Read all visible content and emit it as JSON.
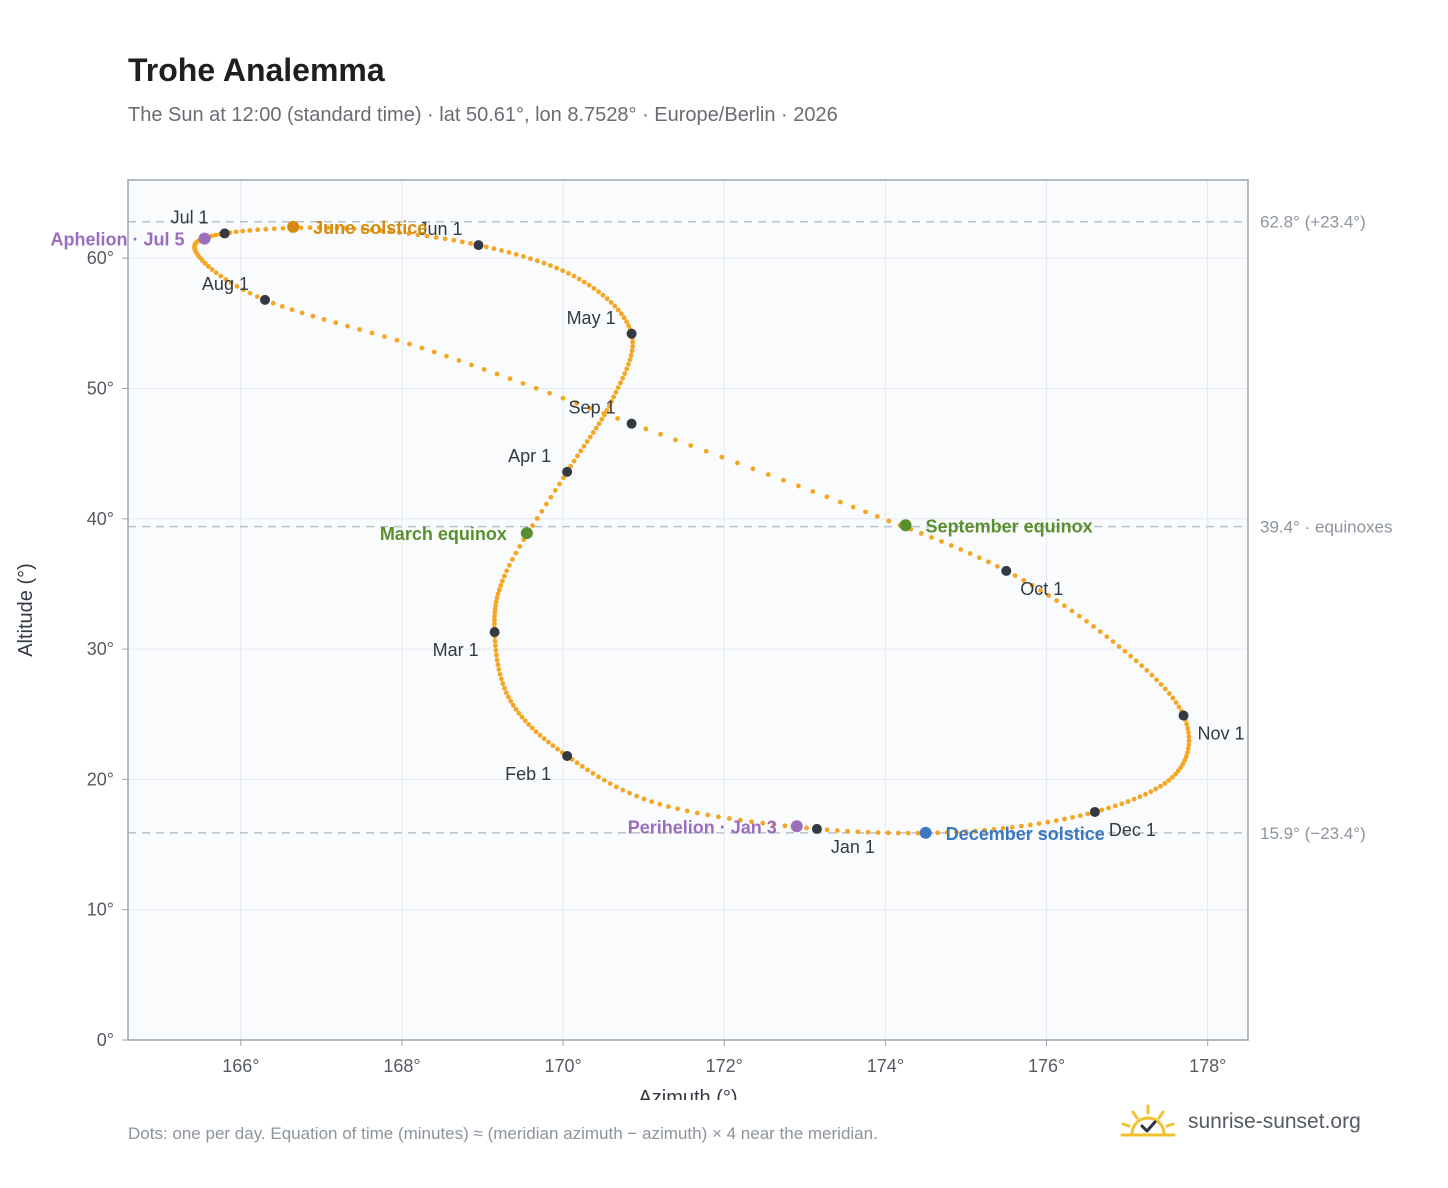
{
  "title": "Trohe Analemma",
  "subtitle": "The Sun at 12:00 (standard time) · lat 50.61°, lon 8.7528° · Europe/Berlin · 2026",
  "footnote": "Dots: one per day. Equation of time (minutes) ≈ (meridian azimuth − azimuth) × 4 near the meridian.",
  "brand": {
    "name": "sunrise-sunset.org",
    "icon": "sun-check-icon"
  },
  "colors": {
    "curve": "#f5a623",
    "month_marker": "#333a44",
    "solstice_june": "#d48a0c",
    "solstice_december": "#3a78c2",
    "equinox": "#5a8f2e",
    "apsis": "#9b6ebd",
    "reference_line": "#b8c2cc",
    "plot_background": "#f9fbfd"
  },
  "chart_data": {
    "type": "scatter",
    "xlabel": "Azimuth (°)",
    "ylabel": "Altitude (°)",
    "xlim": [
      164.6,
      178.5
    ],
    "ylim": [
      0,
      66
    ],
    "xticks": [
      166,
      168,
      170,
      172,
      174,
      176,
      178
    ],
    "yticks": [
      0,
      10,
      20,
      30,
      40,
      50,
      60
    ],
    "x_tick_suffix": "°",
    "y_tick_suffix": "°",
    "grid": true,
    "reference_lines": [
      {
        "y": 62.8,
        "label": "62.8° (+23.4°)"
      },
      {
        "y": 39.4,
        "label": "39.4° · equinoxes"
      },
      {
        "y": 15.9,
        "label": "15.9° (−23.4°)"
      }
    ],
    "path_description": "one dot per day through the year",
    "path_keypoints": [
      {
        "date": "Jan 1",
        "x": 173.15,
        "y": 16.2
      },
      {
        "date": "Jan 15",
        "x": 171.2,
        "y": 18.1
      },
      {
        "date": "Feb 1",
        "x": 170.05,
        "y": 21.8
      },
      {
        "date": "Feb 15",
        "x": 169.35,
        "y": 26.0
      },
      {
        "date": "Mar 1",
        "x": 169.15,
        "y": 31.3
      },
      {
        "date": "Mar 15",
        "x": 169.3,
        "y": 36.0
      },
      {
        "date": "Apr 1",
        "x": 170.05,
        "y": 43.6
      },
      {
        "date": "Apr 15",
        "x": 170.6,
        "y": 49.0
      },
      {
        "date": "May 1",
        "x": 170.85,
        "y": 54.2
      },
      {
        "date": "May 15",
        "x": 170.2,
        "y": 58.4
      },
      {
        "date": "Jun 1",
        "x": 168.95,
        "y": 61.0
      },
      {
        "date": "Jun 15",
        "x": 167.3,
        "y": 62.3
      },
      {
        "date": "Jul 1",
        "x": 165.8,
        "y": 61.9
      },
      {
        "date": "Jul 15",
        "x": 165.45,
        "y": 60.4
      },
      {
        "date": "Aug 1",
        "x": 166.3,
        "y": 56.8
      },
      {
        "date": "Aug 15",
        "x": 168.4,
        "y": 52.8
      },
      {
        "date": "Sep 1",
        "x": 170.85,
        "y": 47.3
      },
      {
        "date": "Sep 15",
        "x": 173.6,
        "y": 40.9
      },
      {
        "date": "Oct 1",
        "x": 175.5,
        "y": 36.0
      },
      {
        "date": "Oct 15",
        "x": 176.9,
        "y": 30.2
      },
      {
        "date": "Nov 1",
        "x": 177.7,
        "y": 24.9
      },
      {
        "date": "Nov 15",
        "x": 177.6,
        "y": 20.4
      },
      {
        "date": "Dec 1",
        "x": 176.6,
        "y": 17.5
      },
      {
        "date": "Dec 15",
        "x": 175.0,
        "y": 16.0
      },
      {
        "date": "Jan 1",
        "x": 173.15,
        "y": 16.2
      }
    ],
    "month_markers": [
      {
        "label": "Jan 1",
        "x": 173.15,
        "y": 16.2,
        "label_pos": "below-right"
      },
      {
        "label": "Feb 1",
        "x": 170.05,
        "y": 21.8,
        "label_pos": "below-left"
      },
      {
        "label": "Mar 1",
        "x": 169.15,
        "y": 31.3,
        "label_pos": "below-left"
      },
      {
        "label": "Apr 1",
        "x": 170.05,
        "y": 43.6,
        "label_pos": "above-left"
      },
      {
        "label": "May 1",
        "x": 170.85,
        "y": 54.2,
        "label_pos": "above-left"
      },
      {
        "label": "Jun 1",
        "x": 168.95,
        "y": 61.0,
        "label_pos": "above-left"
      },
      {
        "label": "Jul 1",
        "x": 165.8,
        "y": 61.9,
        "label_pos": "above-left"
      },
      {
        "label": "Aug 1",
        "x": 166.3,
        "y": 56.8,
        "label_pos": "above-left"
      },
      {
        "label": "Sep 1",
        "x": 170.85,
        "y": 47.3,
        "label_pos": "above-left"
      },
      {
        "label": "Oct 1",
        "x": 175.5,
        "y": 36.0,
        "label_pos": "below-right"
      },
      {
        "label": "Nov 1",
        "x": 177.7,
        "y": 24.9,
        "label_pos": "below-right"
      },
      {
        "label": "Dec 1",
        "x": 176.6,
        "y": 17.5,
        "label_pos": "below-right"
      }
    ],
    "events": [
      {
        "label": "June solstice",
        "x": 166.65,
        "y": 62.4,
        "kind": "solstice_june",
        "label_pos": "right"
      },
      {
        "label": "December solstice",
        "x": 174.5,
        "y": 15.9,
        "kind": "solstice_december",
        "label_pos": "right"
      },
      {
        "label": "March equinox",
        "x": 169.55,
        "y": 38.9,
        "kind": "equinox",
        "label_pos": "left"
      },
      {
        "label": "September equinox",
        "x": 174.25,
        "y": 39.5,
        "kind": "equinox",
        "label_pos": "right"
      },
      {
        "label": "Aphelion · Jul 5",
        "x": 165.55,
        "y": 61.5,
        "kind": "apsis",
        "label_pos": "left"
      },
      {
        "label": "Perihelion · Jan 3",
        "x": 172.9,
        "y": 16.4,
        "kind": "apsis",
        "label_pos": "left"
      }
    ]
  }
}
